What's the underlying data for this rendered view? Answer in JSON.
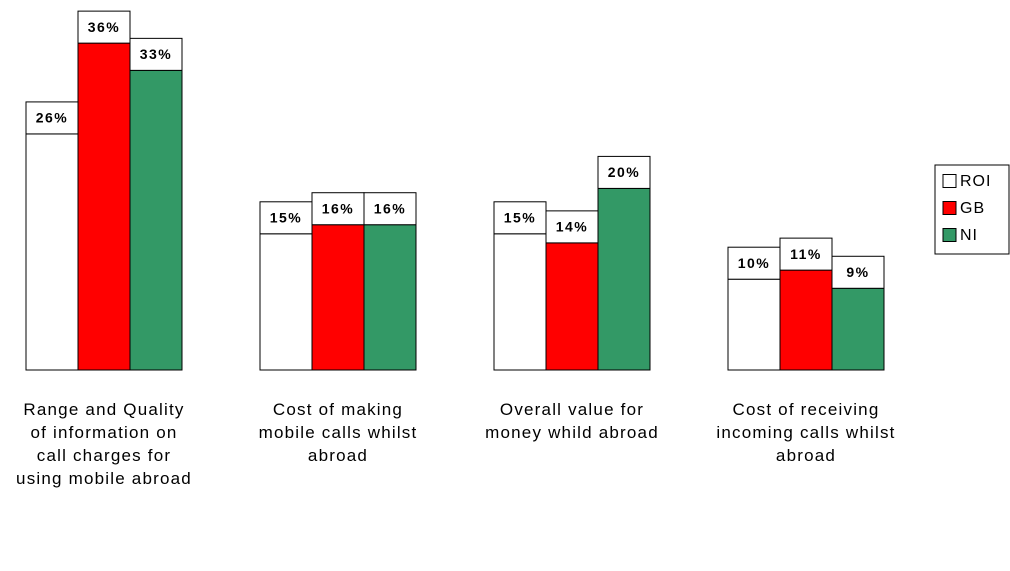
{
  "chart_data": {
    "type": "bar",
    "categories": [
      "Range and Quality of information on call charges for using mobile abroad",
      "Cost of making mobile calls whilst abroad",
      "Overall value for money whild abroad",
      "Cost of receiving incoming calls whilst abroad"
    ],
    "series": [
      {
        "name": "ROI",
        "color": "#ffffff",
        "values": [
          26,
          15,
          15,
          10
        ],
        "value_labels": [
          "26%",
          "15%",
          "15%",
          "10%"
        ]
      },
      {
        "name": "GB",
        "color": "#ff0000",
        "values": [
          36,
          16,
          14,
          11
        ],
        "value_labels": [
          "36%",
          "16%",
          "14%",
          "11%"
        ]
      },
      {
        "name": "NI",
        "color": "#339966",
        "values": [
          33,
          16,
          20,
          9
        ],
        "value_labels": [
          "33%",
          "16%",
          "20%",
          "9%"
        ]
      }
    ]
  }
}
